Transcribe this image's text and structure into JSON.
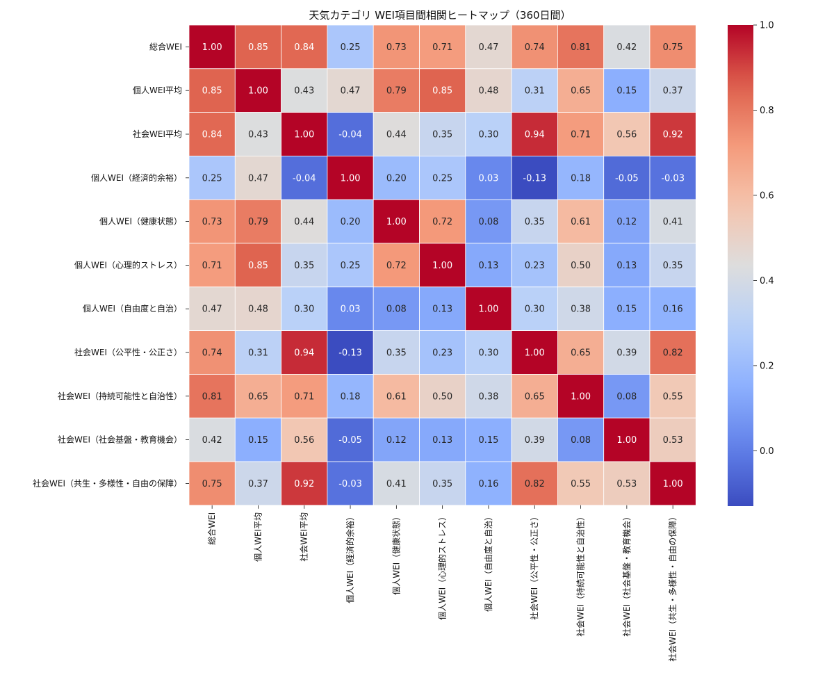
{
  "chart_data": {
    "type": "heatmap",
    "title": "天気カテゴリ WEI項目間相関ヒートマップ（360日間）",
    "xlabel": "",
    "ylabel": "",
    "colormap": "coolwarm",
    "vmin": -0.13,
    "vmax": 1.0,
    "colorbar_ticks": [
      1.0,
      0.8,
      0.6,
      0.4,
      0.2,
      0.0
    ],
    "colorbar_tick_labels": [
      "1.0",
      "0.8",
      "0.6",
      "0.4",
      "0.2",
      "0.0"
    ],
    "row_labels": [
      "総合WEI",
      "個人WEI平均",
      "社会WEI平均",
      "個人WEI（経済的余裕）",
      "個人WEI（健康状態）",
      "個人WEI（心理的ストレス）",
      "個人WEI（自由度と自治）",
      "社会WEI（公平性・公正さ）",
      "社会WEI（持続可能性と自治性）",
      "社会WEI（社会基盤・教育機会）",
      "社会WEI（共生・多様性・自由の保障）"
    ],
    "col_labels": [
      "総合WEI",
      "個人WEI平均",
      "社会WEI平均",
      "個人WEI（経済的余裕）",
      "個人WEI（健康状態）",
      "個人WEI（心理的ストレス）",
      "個人WEI（自由度と自治）",
      "社会WEI（公平性・公正さ）",
      "社会WEI（持続可能性と自治性）",
      "社会WEI（社会基盤・教育機会）",
      "社会WEI（共生・多様性・自由の保障）"
    ],
    "values": [
      [
        1.0,
        0.85,
        0.84,
        0.25,
        0.73,
        0.71,
        0.47,
        0.74,
        0.81,
        0.42,
        0.75
      ],
      [
        0.85,
        1.0,
        0.43,
        0.47,
        0.79,
        0.85,
        0.48,
        0.31,
        0.65,
        0.15,
        0.37
      ],
      [
        0.84,
        0.43,
        1.0,
        -0.04,
        0.44,
        0.35,
        0.3,
        0.94,
        0.71,
        0.56,
        0.92
      ],
      [
        0.25,
        0.47,
        -0.04,
        1.0,
        0.2,
        0.25,
        0.03,
        -0.13,
        0.18,
        -0.05,
        -0.03
      ],
      [
        0.73,
        0.79,
        0.44,
        0.2,
        1.0,
        0.72,
        0.08,
        0.35,
        0.61,
        0.12,
        0.41
      ],
      [
        0.71,
        0.85,
        0.35,
        0.25,
        0.72,
        1.0,
        0.13,
        0.23,
        0.5,
        0.13,
        0.35
      ],
      [
        0.47,
        0.48,
        0.3,
        0.03,
        0.08,
        0.13,
        1.0,
        0.3,
        0.38,
        0.15,
        0.16
      ],
      [
        0.74,
        0.31,
        0.94,
        -0.13,
        0.35,
        0.23,
        0.3,
        1.0,
        0.65,
        0.39,
        0.82
      ],
      [
        0.81,
        0.65,
        0.71,
        0.18,
        0.61,
        0.5,
        0.38,
        0.65,
        1.0,
        0.08,
        0.55
      ],
      [
        0.42,
        0.15,
        0.56,
        -0.05,
        0.12,
        0.13,
        0.15,
        0.39,
        0.08,
        1.0,
        0.53
      ],
      [
        0.75,
        0.37,
        0.92,
        -0.03,
        0.41,
        0.35,
        0.16,
        0.82,
        0.55,
        0.53,
        1.0
      ]
    ],
    "value_format": "0.00"
  }
}
